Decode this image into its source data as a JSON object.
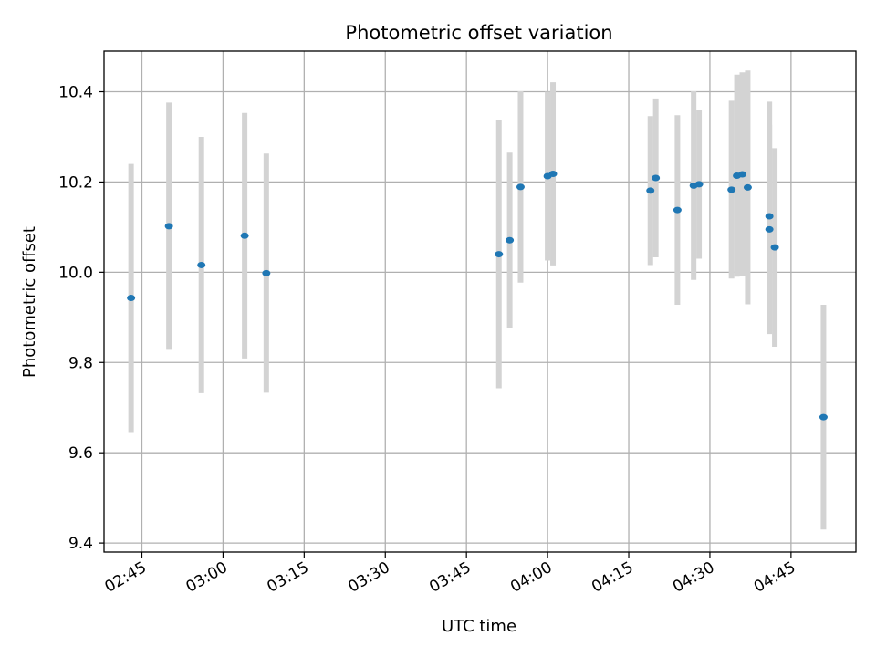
{
  "chart_data": {
    "type": "scatter",
    "title": "Photometric offset variation",
    "xlabel": "UTC time",
    "ylabel": "Photometric offset",
    "xlim": [
      "02:38",
      "04:57"
    ],
    "ylim": [
      9.38,
      10.49
    ],
    "xticks": [
      "02:45",
      "03:00",
      "03:15",
      "03:30",
      "03:45",
      "04:00",
      "04:15",
      "04:30",
      "04:45"
    ],
    "yticks": [
      9.4,
      9.6,
      9.8,
      10.0,
      10.2,
      10.4
    ],
    "ytick_labels": [
      "9.4",
      "9.6",
      "9.8",
      "10.0",
      "10.2",
      "10.4"
    ],
    "grid": true,
    "colors": {
      "point": "#1f77b4",
      "errorbar": "#d3d3d3",
      "grid": "#b0b0b0"
    },
    "series": [
      {
        "points": [
          {
            "x": "02:43",
            "y": 9.943,
            "err": 0.297
          },
          {
            "x": "02:50",
            "y": 10.102,
            "err": 0.274
          },
          {
            "x": "02:56",
            "y": 10.016,
            "err": 0.284
          },
          {
            "x": "03:04",
            "y": 10.081,
            "err": 0.272
          },
          {
            "x": "03:08",
            "y": 9.998,
            "err": 0.265
          },
          {
            "x": "03:51",
            "y": 10.04,
            "err": 0.297
          },
          {
            "x": "03:53",
            "y": 10.071,
            "err": 0.194
          },
          {
            "x": "03:55",
            "y": 10.189,
            "err": 0.212
          },
          {
            "x": "04:00",
            "y": 10.213,
            "err": 0.187
          },
          {
            "x": "04:01",
            "y": 10.218,
            "err": 0.203
          },
          {
            "x": "04:19",
            "y": 10.181,
            "err": 0.165
          },
          {
            "x": "04:20",
            "y": 10.209,
            "err": 0.176
          },
          {
            "x": "04:24",
            "y": 10.138,
            "err": 0.21
          },
          {
            "x": "04:27",
            "y": 10.192,
            "err": 0.209
          },
          {
            "x": "04:28",
            "y": 10.195,
            "err": 0.165
          },
          {
            "x": "04:34",
            "y": 10.183,
            "err": 0.197
          },
          {
            "x": "04:35",
            "y": 10.214,
            "err": 0.224
          },
          {
            "x": "04:36",
            "y": 10.217,
            "err": 0.226
          },
          {
            "x": "04:37",
            "y": 10.188,
            "err": 0.259
          },
          {
            "x": "04:41",
            "y": 10.124,
            "err": 0.254
          },
          {
            "x": "04:41",
            "y": 10.095,
            "err": 0.232
          },
          {
            "x": "04:42",
            "y": 10.055,
            "err": 0.22
          },
          {
            "x": "04:51",
            "y": 9.679,
            "err": 0.249
          }
        ]
      }
    ]
  }
}
